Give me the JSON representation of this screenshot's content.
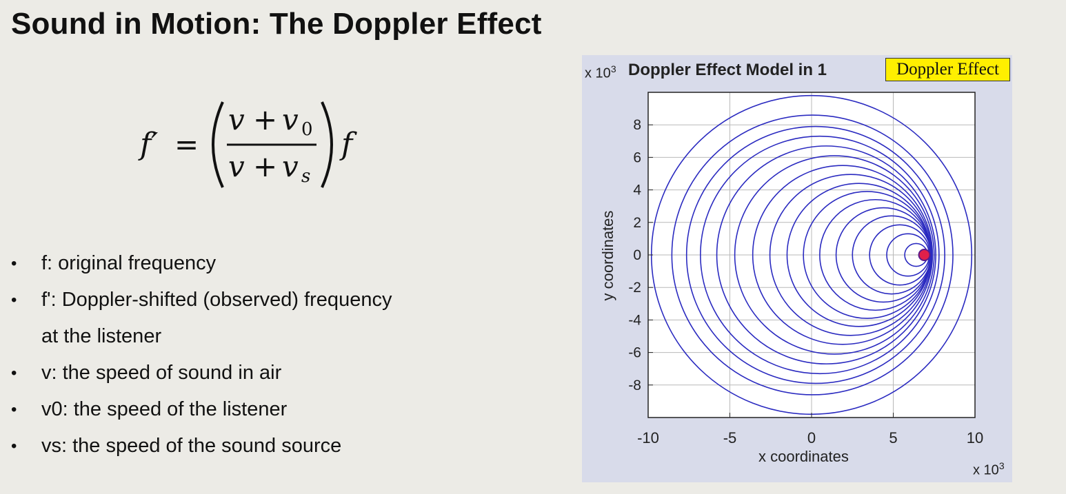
{
  "slide": {
    "title": "Sound in Motion: The Doppler Effect",
    "bullets": [
      {
        "marker": "•",
        "text": "f: original frequency"
      },
      {
        "marker": "•",
        "text": "f': Doppler-shifted (observed) frequency"
      },
      {
        "marker": "",
        "text": "at the listener"
      },
      {
        "marker": "•",
        "text": "v: the speed of sound in air"
      },
      {
        "marker": "•",
        "text": "v0:  the speed of the listener"
      },
      {
        "marker": "•",
        "text": "vs: the speed of the sound source"
      }
    ]
  },
  "formula": {
    "lhs": "f′",
    "equals": "=",
    "numerator_v": "v",
    "numerator_plus": "+",
    "numerator_sub_base": "v",
    "numerator_sub": "0",
    "denominator_v": "v",
    "denominator_plus": "+",
    "denominator_sub_base": "v",
    "denominator_sub": "s",
    "rhs": "f"
  },
  "chart_data": {
    "type": "line",
    "title": "Doppler Effect Model in 1",
    "legend": "Doppler Effect",
    "legend_placement": "top-right",
    "xlabel": "x coordinates",
    "ylabel": "y coordinates",
    "x_exponent_base": "x 10",
    "x_exponent": "3",
    "y_exponent_base": "x 10",
    "y_exponent": "3",
    "xlim": [
      -10,
      10
    ],
    "ylim": [
      -10,
      10
    ],
    "xticks": [
      -10,
      -5,
      0,
      5,
      10
    ],
    "yticks": [
      -8,
      -6,
      -4,
      -2,
      0,
      2,
      4,
      6,
      8
    ],
    "grid": true,
    "line_color": "#2a2ac0",
    "source_marker": {
      "x": 6.9,
      "y": 0,
      "color": "#e0204a"
    },
    "wavefronts": [
      {
        "cx": 6.9,
        "r": 0.2
      },
      {
        "cx": 6.4,
        "r": 0.7
      },
      {
        "cx": 5.9,
        "r": 1.3
      },
      {
        "cx": 5.4,
        "r": 1.85
      },
      {
        "cx": 4.9,
        "r": 2.4
      },
      {
        "cx": 4.4,
        "r": 2.9
      },
      {
        "cx": 3.9,
        "r": 3.4
      },
      {
        "cx": 3.4,
        "r": 3.9
      },
      {
        "cx": 2.9,
        "r": 4.4
      },
      {
        "cx": 2.4,
        "r": 4.95
      },
      {
        "cx": 1.9,
        "r": 5.5
      },
      {
        "cx": 1.4,
        "r": 6.1
      },
      {
        "cx": 0.9,
        "r": 6.7
      },
      {
        "cx": 0.5,
        "r": 7.3
      },
      {
        "cx": 0.25,
        "r": 7.9
      },
      {
        "cx": 0.05,
        "r": 8.6
      },
      {
        "cx": 0.0,
        "r": 9.8
      }
    ]
  }
}
